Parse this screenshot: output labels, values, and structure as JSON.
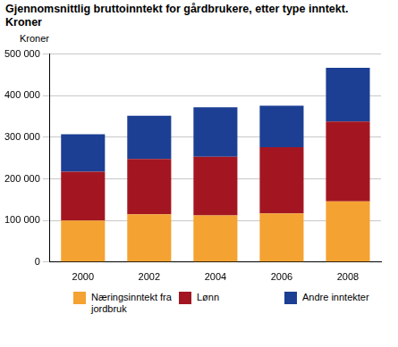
{
  "chart_data": {
    "type": "bar",
    "title": "Gjennomsnittlig bruttoinntekt for gårdbrukere, etter type inntekt. Kroner",
    "ylabel": "Kroner",
    "categories": [
      "2000",
      "2002",
      "2004",
      "2006",
      "2008"
    ],
    "series": [
      {
        "name": "Næringsinntekt fra jordbruk",
        "color": "#f4a231",
        "values": [
          100000,
          115000,
          112000,
          117000,
          146000
        ]
      },
      {
        "name": "Lønn",
        "color": "#a31621",
        "values": [
          117000,
          133000,
          141000,
          159000,
          192000
        ]
      },
      {
        "name": "Andre inntekter",
        "color": "#1c3f94",
        "values": [
          90000,
          104000,
          119000,
          100000,
          129000
        ]
      }
    ],
    "stacked": true,
    "ylim": [
      0,
      500000
    ],
    "yticks": [
      0,
      {
        "value": 100000,
        "label": "100 000"
      },
      {
        "value": 200000,
        "label": "200 000"
      },
      {
        "value": 300000,
        "label": "300 000"
      },
      {
        "value": 400000,
        "label": "400 000"
      },
      {
        "value": 500000,
        "label": "500 000"
      }
    ],
    "grid": true,
    "legend": "bottom"
  }
}
